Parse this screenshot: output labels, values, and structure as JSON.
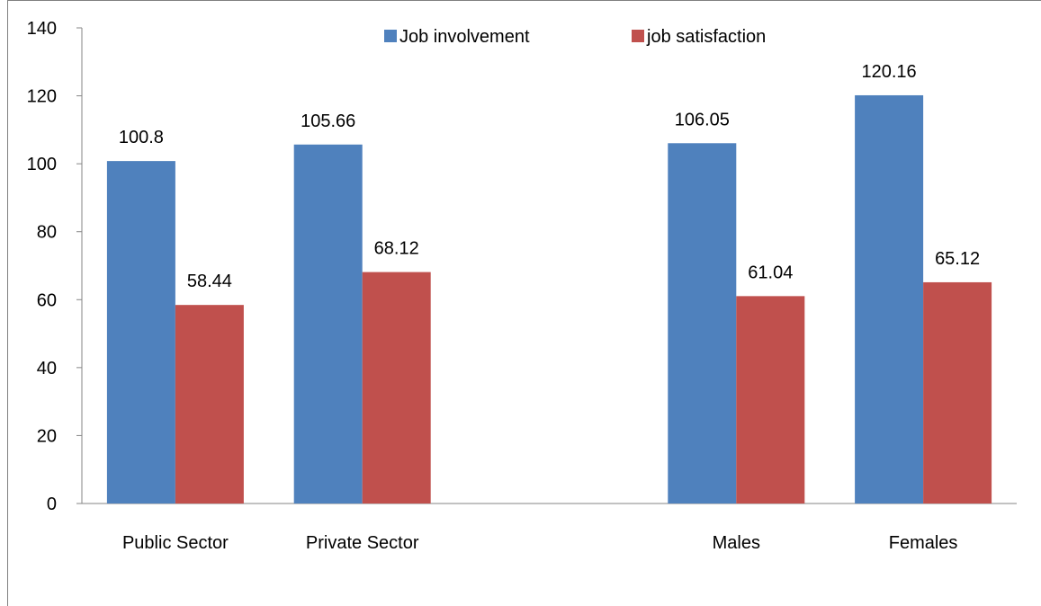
{
  "chart_data": {
    "type": "bar",
    "categories": [
      "Public Sector",
      "Private Sector",
      "",
      "Males",
      "Females"
    ],
    "series": [
      {
        "name": "Job involvement",
        "color": "#4f81bd",
        "values": [
          100.8,
          105.66,
          null,
          106.05,
          120.16
        ]
      },
      {
        "name": "job satisfaction",
        "color": "#c0504d",
        "values": [
          58.44,
          68.12,
          null,
          61.04,
          65.12
        ]
      }
    ],
    "data_labels": [
      [
        "100.8",
        "105.66",
        "",
        "106.05",
        "120.16"
      ],
      [
        "58.44",
        "68.12",
        "",
        "61.04",
        "65.12"
      ]
    ],
    "ylim": [
      0,
      140
    ],
    "yticks": [
      "0",
      "20",
      "40",
      "60",
      "80",
      "100",
      "120",
      "140"
    ],
    "legend_position": "top",
    "grid": false
  }
}
